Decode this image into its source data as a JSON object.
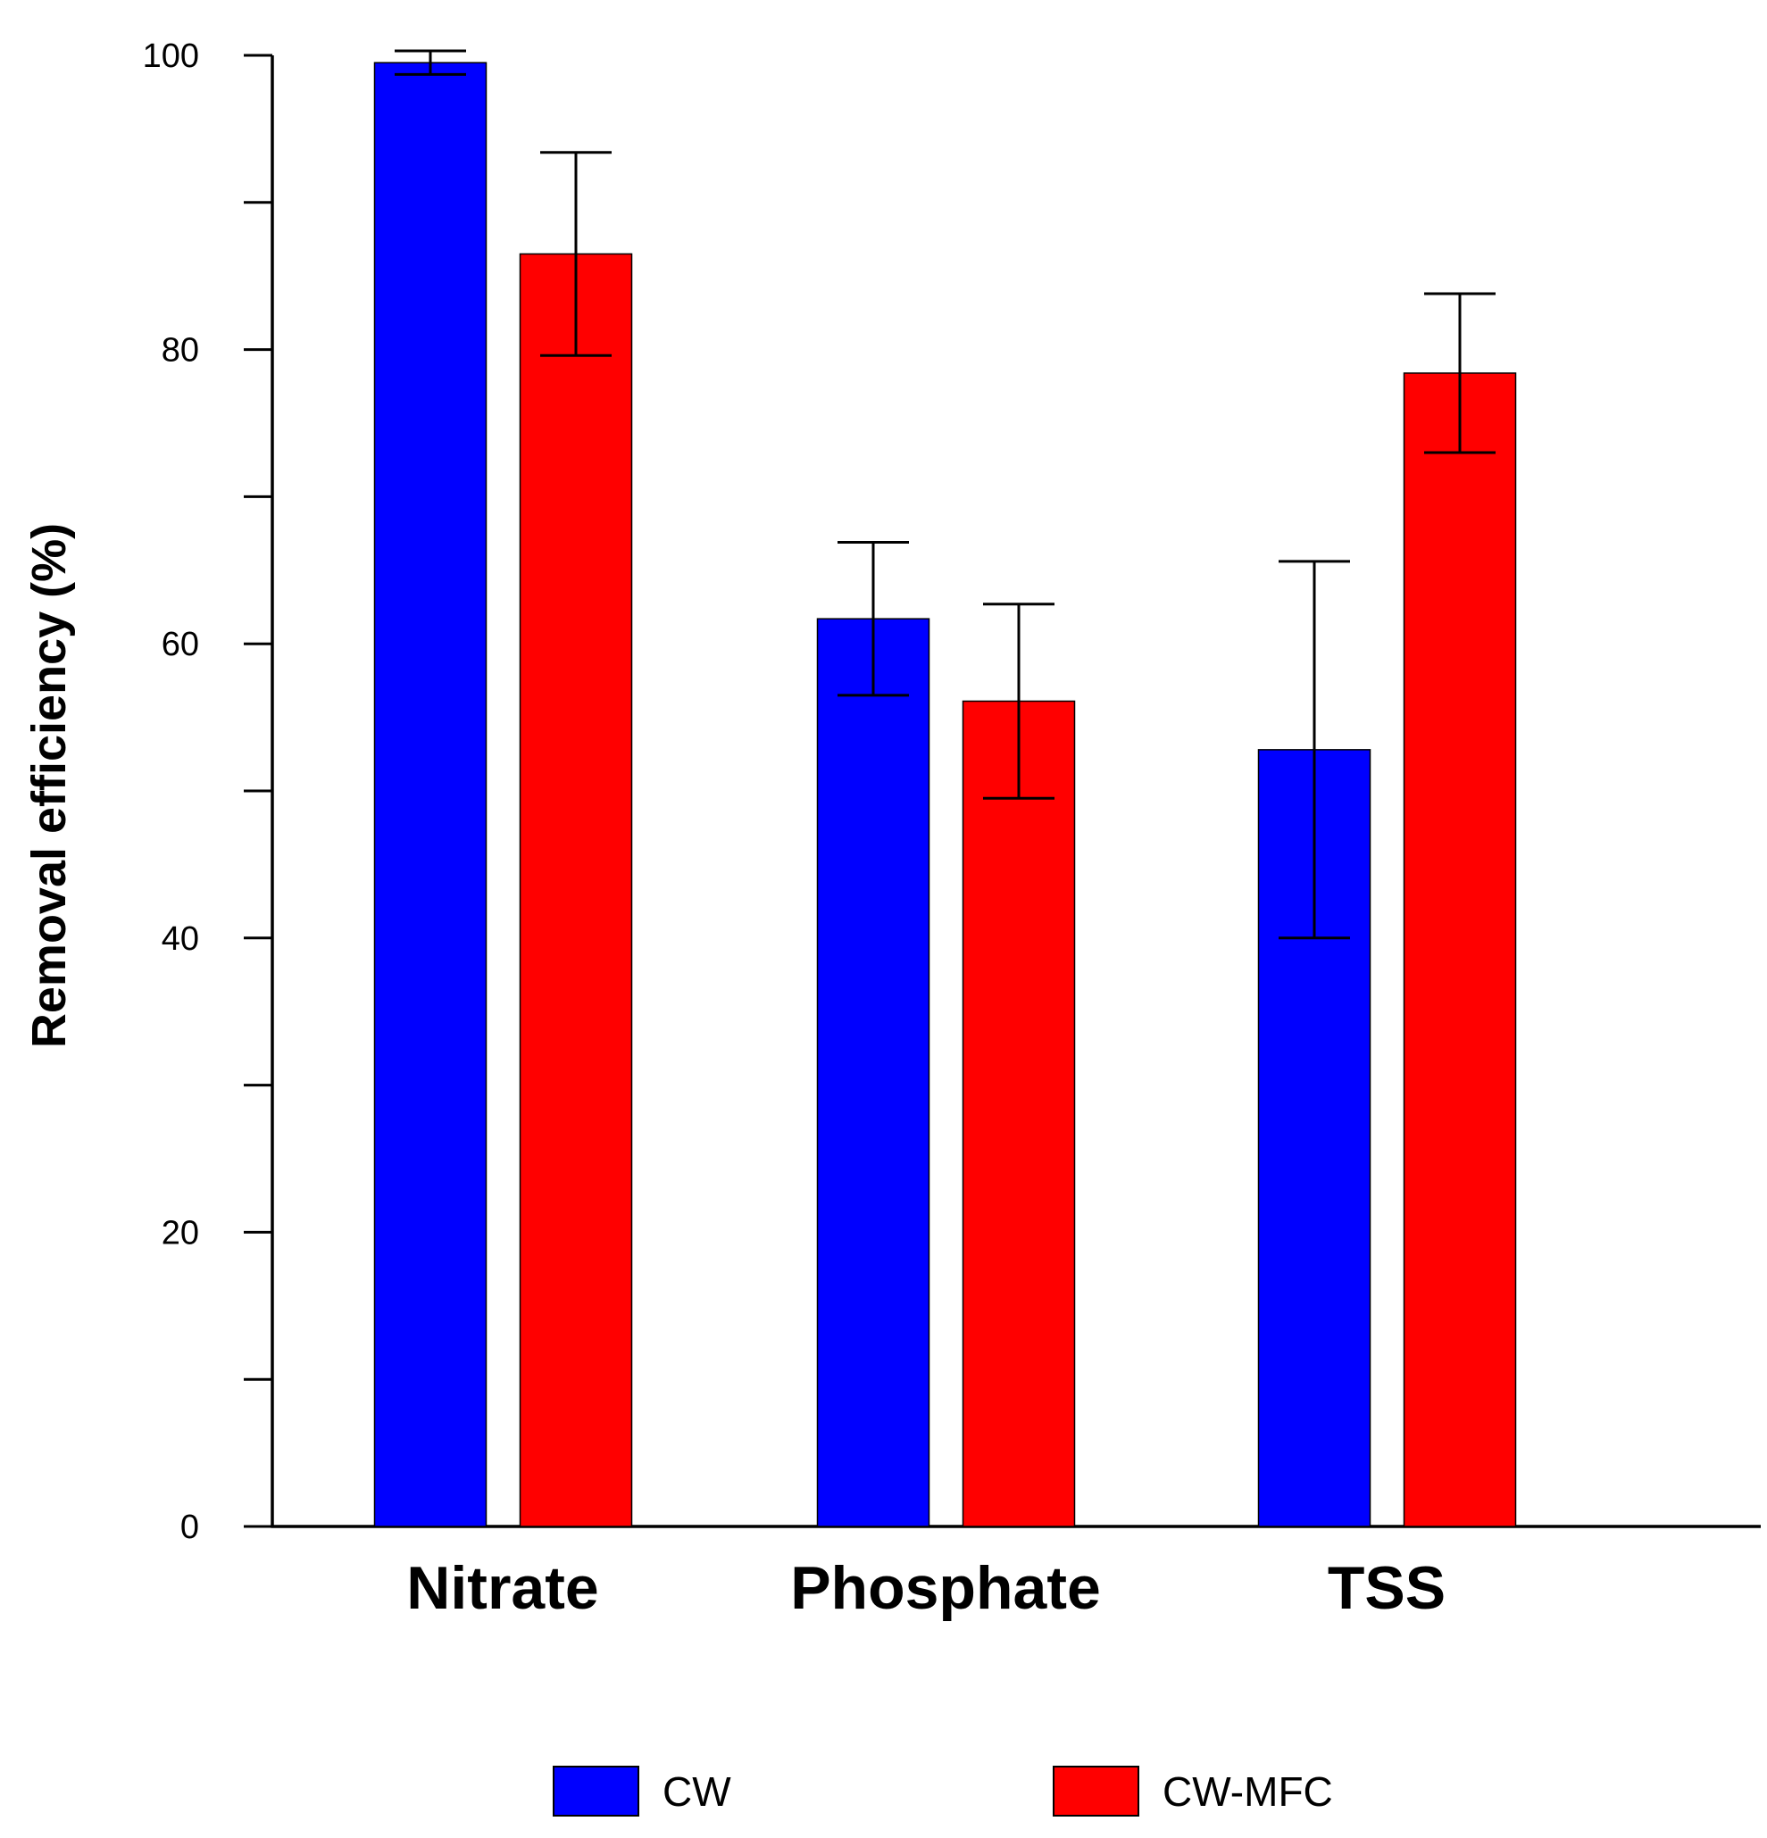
{
  "chart_data": {
    "type": "bar",
    "title": "",
    "xlabel": "",
    "ylabel": "Removal efficiency (%)",
    "ylim": [
      0,
      100
    ],
    "yticks_labeled": [
      0,
      20,
      40,
      60,
      80,
      100
    ],
    "yticks_minor": [
      10,
      30,
      50,
      70,
      90
    ],
    "ytick_labels": [
      "0",
      "20",
      "40",
      "60",
      "80",
      "100"
    ],
    "categories": [
      "Nitrate",
      "Phosphate",
      "TSS"
    ],
    "series": [
      {
        "name": "CW",
        "color": "#0000ff",
        "values": [
          99.5,
          61.7,
          52.8
        ],
        "error": [
          0.8,
          5.2,
          12.8
        ]
      },
      {
        "name": "CW-MFC",
        "color": "#ff0000",
        "values": [
          86.5,
          56.1,
          78.4
        ],
        "error": [
          6.9,
          6.6,
          5.4
        ]
      }
    ],
    "legend": {
      "position": "bottom",
      "entries": [
        "CW",
        "CW-MFC"
      ]
    },
    "grid": false
  }
}
